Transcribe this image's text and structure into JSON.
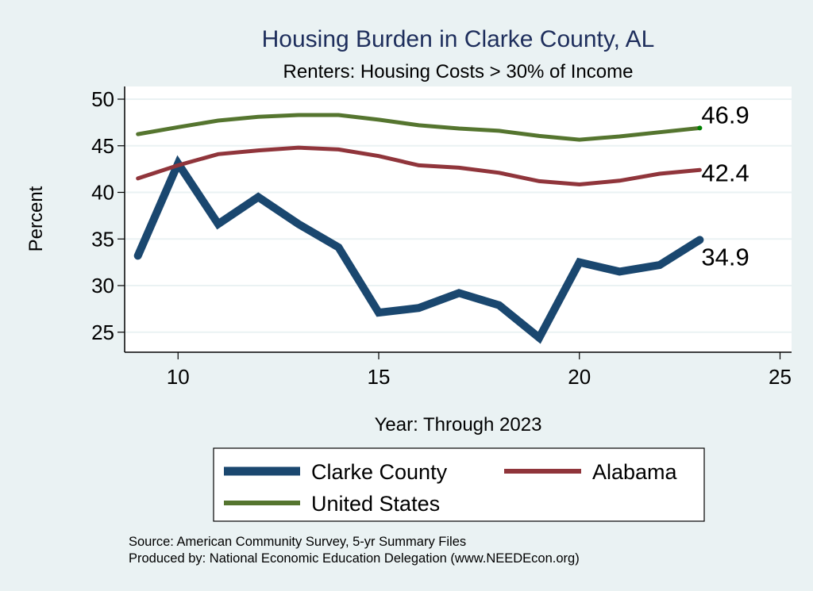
{
  "chart_data": {
    "type": "line",
    "title": "Housing Burden in Clarke County, AL",
    "subtitle": "Renters: Housing Costs > 30% of Income",
    "xlabel": "Year: Through 2023",
    "ylabel": "Percent",
    "xlim": [
      8.7,
      25.3
    ],
    "ylim": [
      23.5,
      51.4
    ],
    "xticks": [
      10,
      15,
      20,
      25
    ],
    "yticks": [
      25,
      30,
      35,
      40,
      45,
      50
    ],
    "grid": "horizontal",
    "legend_position": "bottom",
    "x": [
      9,
      10,
      11,
      12,
      13,
      14,
      15,
      16,
      17,
      18,
      19,
      20,
      21,
      22,
      23
    ],
    "series": [
      {
        "name": "Clarke County",
        "color": "#1a476f",
        "values": [
          33.2,
          43.1,
          36.6,
          39.5,
          36.6,
          34.1,
          27.1,
          27.6,
          29.2,
          27.9,
          24.4,
          32.5,
          31.5,
          32.2,
          34.9
        ],
        "end_label": "34.9"
      },
      {
        "name": "Alabama",
        "color": "#90353b",
        "values": [
          41.5,
          42.9,
          44.1,
          44.5,
          44.8,
          44.6,
          43.9,
          42.9,
          42.65,
          42.1,
          41.2,
          40.85,
          41.25,
          42.0,
          42.4
        ],
        "end_label": "42.4"
      },
      {
        "name": "United States",
        "color": "#55752f",
        "values": [
          46.25,
          47.0,
          47.7,
          48.1,
          48.3,
          48.3,
          47.8,
          47.2,
          46.85,
          46.6,
          46.05,
          45.65,
          46.0,
          46.45,
          46.9
        ],
        "end_label": "46.9"
      }
    ],
    "notes": [
      "Source: American Community Survey, 5-yr Summary Files",
      "Produced by: National Economic Education Delegation (www.NEEDEcon.org)"
    ]
  },
  "colors": {
    "background": "#eaf2f3",
    "plot_background": "#ffffff",
    "gridline": "#eaf2f3",
    "title": "#1e2e5c",
    "end_dot": "#008000"
  }
}
